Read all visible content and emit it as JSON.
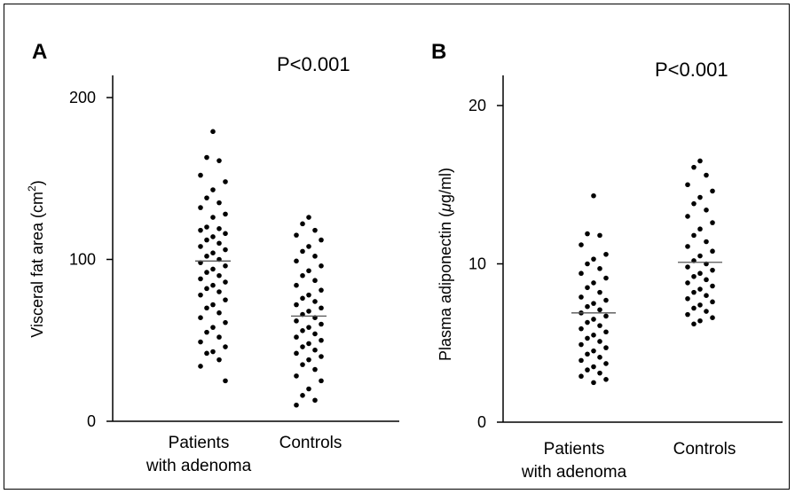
{
  "chart_data": [
    {
      "type": "scatter",
      "panel": "A",
      "annotation": "P<0.001",
      "ylabel_pre": "Visceral fat area (cm",
      "ylabel_sup": "2",
      "ylabel_post": ")",
      "ylim": [
        0,
        200
      ],
      "yticks": [
        0,
        100,
        200
      ],
      "categories": [
        {
          "line1": "Patients",
          "line2": "with adenoma"
        },
        {
          "line1": "Controls",
          "line2": ""
        }
      ],
      "means": [
        99,
        65
      ],
      "groups": [
        [
          179,
          163,
          161,
          152,
          148,
          143,
          138,
          135,
          132,
          128,
          126,
          120,
          119,
          118,
          116,
          114,
          112,
          110,
          108,
          106,
          104,
          102,
          100,
          98,
          96,
          94,
          92,
          90,
          88,
          86,
          84,
          82,
          80,
          78,
          75,
          72,
          70,
          67,
          64,
          61,
          58,
          55,
          52,
          49,
          46,
          43,
          42,
          38,
          34,
          25
        ],
        [
          126,
          122,
          118,
          115,
          112,
          108,
          105,
          102,
          99,
          96,
          93,
          90,
          87,
          84,
          81,
          78,
          76,
          74,
          72,
          70,
          68,
          66,
          64,
          62,
          60,
          58,
          56,
          54,
          52,
          50,
          48,
          46,
          44,
          42,
          40,
          38,
          35,
          32,
          28,
          25,
          20,
          16,
          13,
          10
        ]
      ]
    },
    {
      "type": "scatter",
      "panel": "B",
      "annotation": "P<0.001",
      "ylabel_pre": "Plasma adiponectin (",
      "ylabel_mu": "μ",
      "ylabel_post": "g/ml)",
      "ylim": [
        0,
        20
      ],
      "yticks": [
        0,
        10,
        20
      ],
      "categories": [
        {
          "line1": "Patients",
          "line2": "with adenoma"
        },
        {
          "line1": "Controls",
          "line2": ""
        }
      ],
      "means": [
        6.9,
        10.1
      ],
      "groups": [
        [
          14.3,
          11.9,
          11.8,
          11.2,
          10.6,
          10.3,
          10.0,
          9.7,
          9.4,
          9.1,
          8.8,
          8.5,
          8.2,
          7.9,
          7.7,
          7.5,
          7.3,
          7.1,
          6.9,
          6.7,
          6.5,
          6.3,
          6.1,
          5.9,
          5.7,
          5.5,
          5.3,
          5.1,
          4.9,
          4.7,
          4.5,
          4.3,
          4.1,
          3.9,
          3.7,
          3.5,
          3.3,
          3.1,
          2.9,
          2.7,
          2.5
        ],
        [
          16.5,
          16.1,
          15.6,
          15.0,
          14.6,
          14.2,
          13.8,
          13.4,
          13.0,
          12.6,
          12.2,
          11.8,
          11.4,
          11.1,
          10.8,
          10.5,
          10.2,
          10.0,
          9.8,
          9.6,
          9.4,
          9.2,
          9.0,
          8.8,
          8.6,
          8.4,
          8.2,
          8.0,
          7.8,
          7.6,
          7.4,
          7.2,
          7.0,
          6.8,
          6.6,
          6.4,
          6.2
        ]
      ]
    }
  ]
}
